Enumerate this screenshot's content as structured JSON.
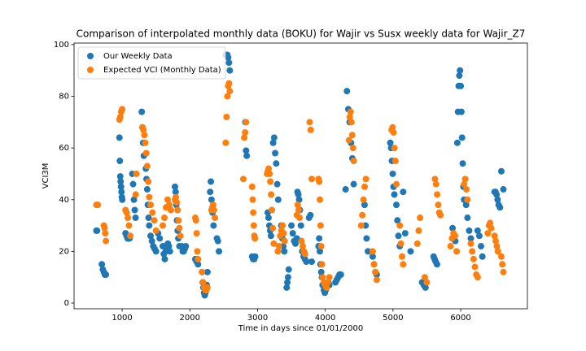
{
  "chart_data": {
    "type": "scatter",
    "title": "Comparison of interpolated monthly data (BOKU) for Wajir vs Susx weekly data for Wajir_Z7",
    "x_label": "Time in days since 01/01/2000",
    "y_label": "VCI3M",
    "xlim": [
      290,
      6985
    ],
    "ylim": [
      -2.2,
      100.6
    ],
    "xticks": [
      1000,
      2000,
      3000,
      4000,
      5000,
      6000
    ],
    "yticks": [
      0,
      20,
      40,
      60,
      80,
      100
    ],
    "legend": "upper left",
    "series": [
      {
        "name": "Our Weekly Data",
        "color": "#1f77b4",
        "x": [
          620,
          630,
          700,
          715,
          730,
          745,
          760,
          960,
          966,
          972,
          978,
          984,
          990,
          996,
          1002,
          1050,
          1065,
          1080,
          1095,
          1110,
          1150,
          1162,
          1174,
          1186,
          1198,
          1290,
          1300,
          1310,
          1320,
          1350,
          1360,
          1370,
          1380,
          1390,
          1400,
          1420,
          1440,
          1460,
          1480,
          1500,
          1530,
          1555,
          1600,
          1615,
          1630,
          1645,
          1660,
          1675,
          1690,
          1705,
          1780,
          1790,
          1800,
          1810,
          1820,
          1830,
          1845,
          1880,
          1895,
          1910,
          1925,
          1940,
          2080,
          2100,
          2120,
          2180,
          2190,
          2200,
          2210,
          2220,
          2230,
          2240,
          2250,
          2260,
          2300,
          2310,
          2320,
          2335,
          2350,
          2400,
          2415,
          2430,
          2530,
          2542,
          2554,
          2566,
          2578,
          2590,
          2820,
          2830,
          2840,
          2920,
          2935,
          2950,
          2965,
          3150,
          3162,
          3174,
          3186,
          3198,
          3230,
          3245,
          3260,
          3275,
          3290,
          3305,
          3350,
          3365,
          3380,
          3395,
          3430,
          3440,
          3450,
          3460,
          3500,
          3520,
          3540,
          3560,
          3580,
          3590,
          3602,
          3614,
          3626,
          3640,
          3660,
          3680,
          3700,
          3720,
          3760,
          3780,
          3800,
          3900,
          3910,
          3920,
          3930,
          3940,
          3950,
          3960,
          3980,
          3993,
          4006,
          4019,
          4032,
          4045,
          4060,
          4150,
          4170,
          4190,
          4210,
          4230,
          4300,
          4320,
          4340,
          4360,
          4380,
          4400,
          4420,
          4580,
          4595,
          4610,
          4630,
          4700,
          4720,
          4740,
          4760,
          4960,
          4972,
          4984,
          4996,
          5008,
          5020,
          5050,
          5065,
          5080,
          5100,
          5150,
          5180,
          5260,
          5430,
          5455,
          5480,
          5600,
          5615,
          5630,
          5650,
          5880,
          5900,
          5920,
          5950,
          5960,
          5970,
          5980,
          5990,
          6000,
          6010,
          6020,
          6030,
          6040,
          6050,
          6080,
          6100,
          6125,
          6150,
          6250,
          6275,
          6300,
          6320,
          6500,
          6515,
          6530,
          6545,
          6560,
          6580,
          6600,
          6630
        ],
        "values": [
          28,
          28,
          15,
          13,
          12,
          11,
          11,
          64,
          55,
          49,
          47,
          45,
          43,
          41,
          40,
          27,
          26,
          25,
          25,
          25,
          50,
          46,
          40,
          36,
          33,
          74,
          68,
          62,
          57,
          52,
          48,
          44,
          38,
          33,
          30,
          26,
          24,
          22,
          21,
          20,
          27,
          25,
          22,
          19,
          17,
          20,
          21,
          23,
          22,
          20,
          45,
          43,
          38,
          32,
          28,
          25,
          22,
          22,
          20,
          20,
          21,
          22,
          17,
          16,
          15,
          12,
          8,
          6,
          4,
          3,
          4,
          5,
          7,
          12,
          43,
          47,
          40,
          35,
          30,
          25,
          24,
          20,
          96,
          96,
          96,
          95,
          93,
          90,
          70,
          59,
          57,
          18,
          17,
          17,
          18,
          35,
          33,
          30,
          28,
          26,
          62,
          64,
          58,
          54,
          46,
          40,
          30,
          25,
          22,
          20,
          6,
          8,
          10,
          13,
          30,
          27,
          24,
          23,
          25,
          43,
          42,
          40,
          36,
          30,
          20,
          18,
          17,
          16,
          33,
          34,
          16,
          22,
          25,
          20,
          15,
          12,
          10,
          7,
          5,
          4,
          5,
          6,
          7,
          8,
          7,
          8,
          9,
          10,
          11,
          11,
          44,
          82,
          75,
          70,
          62,
          56,
          46,
          38,
          30,
          25,
          20,
          18,
          15,
          12,
          11,
          62,
          60,
          55,
          50,
          45,
          42,
          38,
          32,
          26,
          22,
          43,
          27,
          20,
          8,
          7,
          6,
          18,
          17,
          16,
          15,
          29,
          26,
          24,
          62,
          74,
          84,
          88,
          90,
          84,
          74,
          64,
          54,
          45,
          40,
          38,
          33,
          28,
          25,
          28,
          26,
          22,
          18,
          43,
          43,
          42,
          40,
          38,
          37,
          51,
          44
        ]
      },
      {
        "name": "Expected VCI (Monthly Data)",
        "color": "#ff7f0e",
        "x": [
          620,
          640,
          730,
          740,
          750,
          760,
          960,
          973,
          986,
          1000,
          1050,
          1067,
          1084,
          1101,
          1120,
          1200,
          1210,
          1300,
          1314,
          1328,
          1342,
          1356,
          1370,
          1385,
          1400,
          1420,
          1447,
          1474,
          1500,
          1600,
          1624,
          1648,
          1672,
          1696,
          1720,
          1780,
          1793,
          1806,
          1819,
          1832,
          1845,
          1860,
          2080,
          2090,
          2100,
          2110,
          2120,
          2180,
          2196,
          2212,
          2228,
          2244,
          2260,
          2320,
          2332,
          2344,
          2356,
          2370,
          2530,
          2542,
          2554,
          2566,
          2578,
          2590,
          2790,
          2803,
          2816,
          2830,
          2920,
          2928,
          2936,
          2944,
          2952,
          2960,
          3140,
          3152,
          3164,
          3176,
          3188,
          3200,
          3212,
          3224,
          3240,
          3300,
          3317,
          3334,
          3351,
          3368,
          3385,
          3400,
          3580,
          3593,
          3606,
          3620,
          3650,
          3667,
          3684,
          3700,
          3770,
          3785,
          3800,
          3900,
          3910,
          3920,
          3930,
          3940,
          3950,
          3960,
          3980,
          3999,
          4018,
          4037,
          4060,
          4350,
          4362,
          4374,
          4386,
          4398,
          4410,
          4420,
          4530,
          4547,
          4564,
          4581,
          4600,
          4700,
          4720,
          4740,
          4760,
          4980,
          4994,
          5008,
          5022,
          5036,
          5050,
          5100,
          5117,
          5134,
          5150,
          5360,
          5380,
          5400,
          5470,
          5500,
          5620,
          5636,
          5652,
          5668,
          5684,
          5700,
          5850,
          5872,
          5894,
          5916,
          5940,
          6050,
          6067,
          6084,
          6100,
          6150,
          6170,
          6190,
          6210,
          6230,
          6250,
          6400,
          6417,
          6434,
          6450,
          6500,
          6517,
          6534,
          6550,
          6600,
          6615,
          6630
        ],
        "values": [
          38,
          38,
          30,
          29,
          27,
          24,
          71,
          72,
          74,
          75,
          36,
          35,
          33,
          30,
          26,
          42,
          50,
          68,
          67,
          65,
          62,
          58,
          53,
          47,
          41,
          38,
          35,
          32,
          28,
          30,
          33,
          37,
          40,
          38,
          36,
          40,
          41,
          39,
          36,
          32,
          29,
          26,
          33,
          32,
          27,
          20,
          17,
          12,
          8,
          6,
          5,
          5,
          6,
          36,
          37,
          38,
          36,
          33,
          62,
          72,
          80,
          84,
          85,
          82,
          48,
          64,
          66,
          70,
          45,
          40,
          35,
          30,
          26,
          25,
          50,
          51,
          52,
          50,
          47,
          42,
          36,
          29,
          23,
          20,
          22,
          26,
          28,
          30,
          27,
          24,
          34,
          38,
          36,
          33,
          24,
          22,
          20,
          19,
          70,
          67,
          48,
          48,
          47,
          40,
          30,
          22,
          15,
          10,
          8,
          7,
          6,
          8,
          10,
          63,
          72,
          74,
          70,
          65,
          60,
          55,
          30,
          34,
          40,
          45,
          48,
          20,
          15,
          12,
          9,
          67,
          68,
          66,
          60,
          55,
          46,
          30,
          23,
          18,
          15,
          23,
          28,
          33,
          10,
          8,
          48,
          46,
          42,
          38,
          35,
          34,
          22,
          25,
          27,
          26,
          20,
          46,
          48,
          44,
          40,
          23,
          20,
          17,
          14,
          11,
          10,
          27,
          30,
          31,
          29,
          26,
          24,
          22,
          20,
          18,
          15,
          12
        ]
      }
    ]
  }
}
